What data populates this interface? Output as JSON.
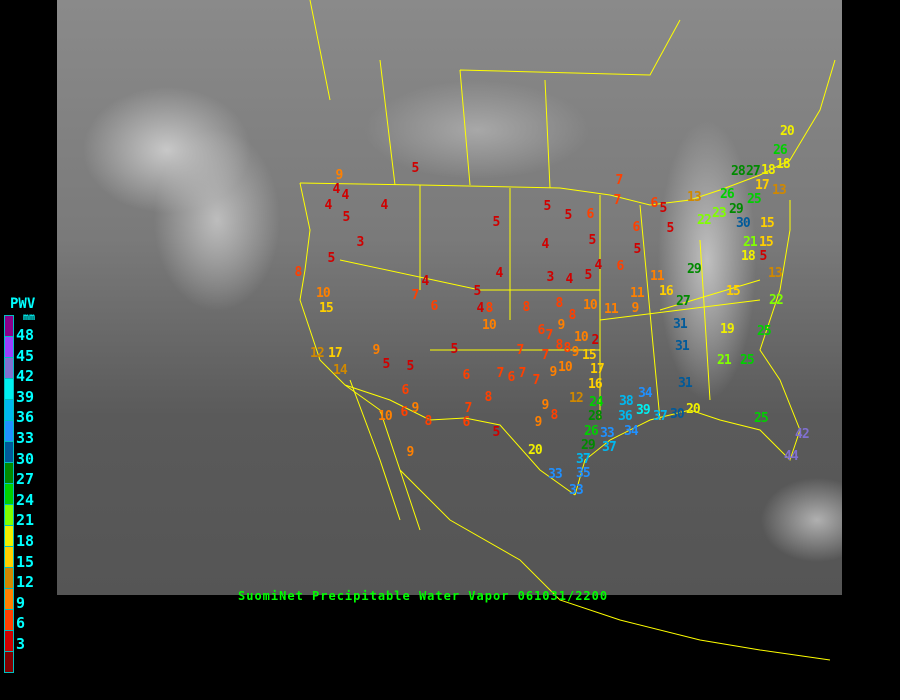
{
  "title": "SuomiNet Precipitable Water Vapor 061031/2200",
  "legend": {
    "title": "PWV",
    "unit": "mm",
    "labels": [
      "48",
      "45",
      "42",
      "39",
      "36",
      "33",
      "30",
      "27",
      "24",
      "21",
      "18",
      "15",
      "12",
      "9",
      "6",
      "3"
    ],
    "colors": [
      "#8a008a",
      "#9a40ff",
      "#8070d0",
      "#00f0f0",
      "#00b8f0",
      "#2090ff",
      "#005a9a",
      "#008a00",
      "#00d000",
      "#80ff00",
      "#f0f000",
      "#ffd000",
      "#d08800",
      "#ff8000",
      "#ff4000",
      "#d00000",
      "#800000"
    ]
  },
  "station_values": [
    5,
    9,
    4,
    4,
    4,
    4,
    5,
    3,
    5,
    8,
    10,
    15,
    4,
    7,
    6,
    5,
    4,
    8,
    10,
    5,
    5,
    5,
    6,
    4,
    5,
    4,
    3,
    4,
    5,
    4,
    8,
    8,
    9,
    8,
    10,
    11,
    6,
    12,
    17,
    14,
    9,
    5,
    5,
    6,
    6,
    9,
    10,
    8,
    9,
    5,
    6,
    7,
    8,
    6,
    7,
    6,
    7,
    7,
    5,
    6,
    7,
    7,
    7,
    8,
    8,
    9,
    10,
    2,
    10,
    15,
    17,
    16,
    9,
    12,
    24,
    28,
    9,
    8,
    9,
    20,
    26,
    29,
    33,
    37,
    37,
    35,
    33,
    33,
    20,
    26,
    18,
    18,
    28,
    27,
    17,
    26,
    25,
    13,
    29,
    30,
    23,
    22,
    13,
    7,
    7,
    6,
    5,
    5,
    6,
    5,
    15,
    21,
    15,
    18,
    5,
    13,
    29,
    11,
    16,
    27,
    11,
    9,
    15,
    22,
    31,
    19,
    25,
    31,
    21,
    25,
    31,
    34,
    38,
    36,
    39,
    37,
    30,
    20,
    34,
    25,
    42,
    44
  ]
}
